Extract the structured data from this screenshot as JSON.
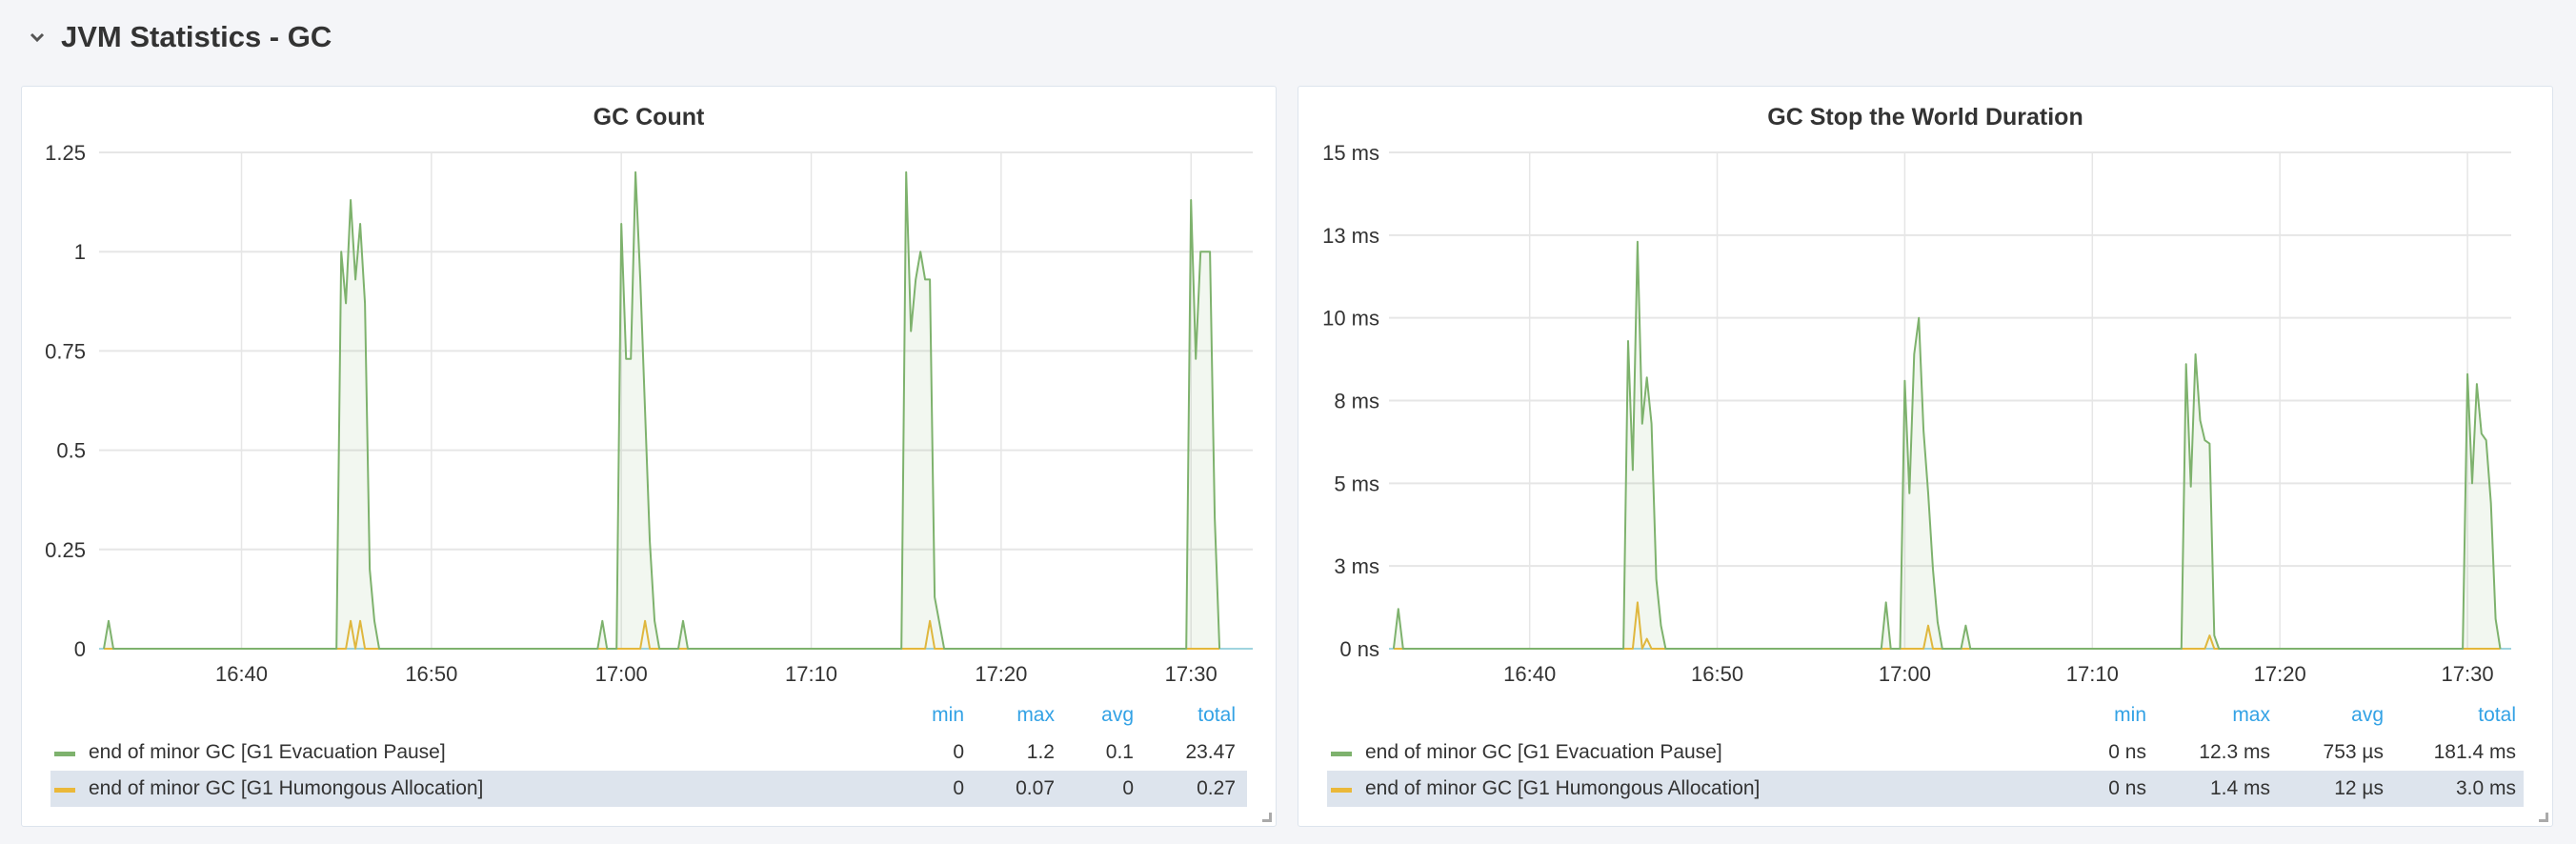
{
  "row": {
    "title": "JVM Statistics - GC",
    "collapse_icon": "chevron-down-icon"
  },
  "colors": {
    "green": "#7eb26d",
    "yellow": "#eab839",
    "grid": "#e6e6e6",
    "legend_header": "#33a2e5",
    "zero_line": "#9fd4df"
  },
  "legend_headers": [
    "min",
    "max",
    "avg",
    "total"
  ],
  "panels": [
    {
      "title": "GC Count",
      "legend": [
        {
          "name": "end of minor GC [G1 Evacuation Pause]",
          "color": "#7eb26d",
          "min": "0",
          "max": "1.2",
          "avg": "0.1",
          "total": "23.47"
        },
        {
          "name": "end of minor GC [G1 Humongous Allocation]",
          "color": "#eab839",
          "min": "0",
          "max": "0.07",
          "avg": "0",
          "total": "0.27"
        }
      ]
    },
    {
      "title": "GC Stop the World Duration",
      "legend": [
        {
          "name": "end of minor GC [G1 Evacuation Pause]",
          "color": "#7eb26d",
          "min": "0 ns",
          "max": "12.3 ms",
          "avg": "753 µs",
          "total": "181.4 ms"
        },
        {
          "name": "end of minor GC [G1 Humongous Allocation]",
          "color": "#eab839",
          "min": "0 ns",
          "max": "1.4 ms",
          "avg": "12 µs",
          "total": "3.0 ms"
        }
      ]
    }
  ],
  "chart_data": [
    {
      "type": "area",
      "title": "GC Count",
      "xlim": [
        "16:32:30",
        "17:33:15"
      ],
      "ylim": [
        0,
        1.25
      ],
      "grid": true,
      "legend_placement": "bottom",
      "x_ticks": [
        "16:40",
        "16:50",
        "17:00",
        "17:10",
        "17:20",
        "17:30"
      ],
      "y_ticks": [
        {
          "v": 0,
          "label": "0"
        },
        {
          "v": 0.25,
          "label": "0.25"
        },
        {
          "v": 0.5,
          "label": "0.5"
        },
        {
          "v": 0.75,
          "label": "0.75"
        },
        {
          "v": 1,
          "label": "1"
        },
        {
          "v": 1.25,
          "label": "1.25"
        }
      ],
      "series": [
        {
          "name": "end of minor GC [G1 Evacuation Pause]",
          "color": "#7eb26d",
          "fill": true,
          "points": [
            [
              "16:32:45",
              0
            ],
            [
              "16:33:00",
              0.07
            ],
            [
              "16:33:15",
              0
            ],
            [
              "16:45:00",
              0
            ],
            [
              "16:45:15",
              1.0
            ],
            [
              "16:45:30",
              0.87
            ],
            [
              "16:45:45",
              1.13
            ],
            [
              "16:46:00",
              0.93
            ],
            [
              "16:46:15",
              1.07
            ],
            [
              "16:46:30",
              0.87
            ],
            [
              "16:46:45",
              0.2
            ],
            [
              "16:47:00",
              0.07
            ],
            [
              "16:47:15",
              0
            ],
            [
              "16:58:45",
              0
            ],
            [
              "16:59:00",
              0.07
            ],
            [
              "16:59:15",
              0
            ],
            [
              "16:59:45",
              0
            ],
            [
              "17:00:00",
              1.07
            ],
            [
              "17:00:15",
              0.73
            ],
            [
              "17:00:30",
              0.73
            ],
            [
              "17:00:45",
              1.2
            ],
            [
              "17:01:00",
              0.93
            ],
            [
              "17:01:30",
              0.27
            ],
            [
              "17:01:45",
              0.07
            ],
            [
              "17:02:00",
              0
            ],
            [
              "17:03:00",
              0
            ],
            [
              "17:03:15",
              0.07
            ],
            [
              "17:03:30",
              0
            ],
            [
              "17:14:45",
              0
            ],
            [
              "17:15:00",
              1.2
            ],
            [
              "17:15:15",
              0.8
            ],
            [
              "17:15:30",
              0.93
            ],
            [
              "17:15:45",
              1.0
            ],
            [
              "17:16:00",
              0.93
            ],
            [
              "17:16:15",
              0.93
            ],
            [
              "17:16:30",
              0.13
            ],
            [
              "17:17:00",
              0
            ],
            [
              "17:29:45",
              0
            ],
            [
              "17:30:00",
              1.13
            ],
            [
              "17:30:15",
              0.73
            ],
            [
              "17:30:30",
              1.0
            ],
            [
              "17:30:45",
              1.0
            ],
            [
              "17:31:00",
              1.0
            ],
            [
              "17:31:15",
              0.33
            ],
            [
              "17:31:30",
              0
            ]
          ]
        },
        {
          "name": "end of minor GC [G1 Humongous Allocation]",
          "color": "#eab839",
          "fill": false,
          "points": [
            [
              "16:32:45",
              0
            ],
            [
              "16:45:30",
              0
            ],
            [
              "16:45:45",
              0.07
            ],
            [
              "16:46:00",
              0
            ],
            [
              "16:46:15",
              0.07
            ],
            [
              "16:46:30",
              0
            ],
            [
              "17:01:00",
              0
            ],
            [
              "17:01:15",
              0.07
            ],
            [
              "17:01:30",
              0
            ],
            [
              "17:16:00",
              0
            ],
            [
              "17:16:15",
              0.07
            ],
            [
              "17:16:30",
              0
            ],
            [
              "17:31:30",
              0
            ]
          ]
        }
      ]
    },
    {
      "type": "area",
      "title": "GC Stop the World Duration",
      "xlim": [
        "16:32:30",
        "17:32:20"
      ],
      "ylim": [
        0,
        15
      ],
      "y_unit": "ms",
      "grid": true,
      "legend_placement": "bottom",
      "x_ticks": [
        "16:40",
        "16:50",
        "17:00",
        "17:10",
        "17:20",
        "17:30"
      ],
      "y_ticks": [
        {
          "v": 0,
          "label": "0 ns"
        },
        {
          "v": 2.5,
          "label": "3 ms"
        },
        {
          "v": 5,
          "label": "5 ms"
        },
        {
          "v": 7.5,
          "label": "8 ms"
        },
        {
          "v": 10,
          "label": "10 ms"
        },
        {
          "v": 12.5,
          "label": "13 ms"
        },
        {
          "v": 15,
          "label": "15 ms"
        }
      ],
      "series": [
        {
          "name": "end of minor GC [G1 Evacuation Pause]",
          "color": "#7eb26d",
          "fill": true,
          "points": [
            [
              "16:32:45",
              0
            ],
            [
              "16:33:00",
              1.2
            ],
            [
              "16:33:15",
              0
            ],
            [
              "16:45:00",
              0
            ],
            [
              "16:45:15",
              9.3
            ],
            [
              "16:45:30",
              5.4
            ],
            [
              "16:45:45",
              12.3
            ],
            [
              "16:46:00",
              6.8
            ],
            [
              "16:46:15",
              8.2
            ],
            [
              "16:46:30",
              6.8
            ],
            [
              "16:46:45",
              2.1
            ],
            [
              "16:47:00",
              0.7
            ],
            [
              "16:47:15",
              0
            ],
            [
              "16:58:45",
              0
            ],
            [
              "16:59:00",
              1.4
            ],
            [
              "16:59:15",
              0
            ],
            [
              "16:59:45",
              0
            ],
            [
              "17:00:00",
              8.1
            ],
            [
              "17:00:15",
              4.7
            ],
            [
              "17:00:30",
              8.9
            ],
            [
              "17:00:45",
              10.0
            ],
            [
              "17:01:00",
              6.6
            ],
            [
              "17:01:15",
              4.7
            ],
            [
              "17:01:30",
              2.4
            ],
            [
              "17:01:45",
              0.8
            ],
            [
              "17:02:00",
              0
            ],
            [
              "17:03:00",
              0
            ],
            [
              "17:03:15",
              0.7
            ],
            [
              "17:03:30",
              0
            ],
            [
              "17:14:45",
              0
            ],
            [
              "17:15:00",
              8.6
            ],
            [
              "17:15:15",
              4.9
            ],
            [
              "17:15:30",
              8.9
            ],
            [
              "17:15:45",
              6.9
            ],
            [
              "17:16:00",
              6.3
            ],
            [
              "17:16:15",
              6.2
            ],
            [
              "17:16:30",
              0.4
            ],
            [
              "17:16:45",
              0
            ],
            [
              "17:29:45",
              0
            ],
            [
              "17:30:00",
              8.3
            ],
            [
              "17:30:15",
              5.0
            ],
            [
              "17:30:30",
              8.0
            ],
            [
              "17:30:45",
              6.5
            ],
            [
              "17:31:00",
              6.3
            ],
            [
              "17:31:15",
              4.4
            ],
            [
              "17:31:30",
              0.9
            ],
            [
              "17:31:45",
              0
            ]
          ]
        },
        {
          "name": "end of minor GC [G1 Humongous Allocation]",
          "color": "#eab839",
          "fill": false,
          "points": [
            [
              "16:32:45",
              0
            ],
            [
              "16:45:30",
              0
            ],
            [
              "16:45:45",
              1.4
            ],
            [
              "16:46:00",
              0
            ],
            [
              "16:46:15",
              0.3
            ],
            [
              "16:46:30",
              0
            ],
            [
              "17:01:00",
              0
            ],
            [
              "17:01:15",
              0.7
            ],
            [
              "17:01:30",
              0
            ],
            [
              "17:16:00",
              0
            ],
            [
              "17:16:15",
              0.4
            ],
            [
              "17:16:30",
              0
            ],
            [
              "17:31:45",
              0
            ]
          ]
        }
      ]
    }
  ]
}
